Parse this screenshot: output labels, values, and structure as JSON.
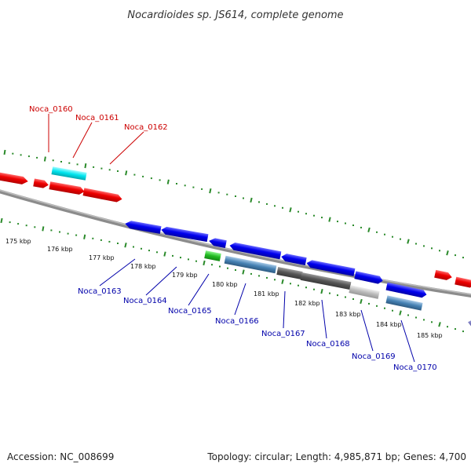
{
  "title": "Nocardioides sp. JS614, complete genome",
  "footer": {
    "accession": "Accession: NC_008699",
    "summary": "Topology: circular; Length: 4,985,871 bp; Genes: 4,700"
  },
  "scale_labels": [
    "175 kbp",
    "176 kbp",
    "177 kbp",
    "178 kbp",
    "179 kbp",
    "180 kbp",
    "181 kbp",
    "182 kbp",
    "183 kbp",
    "184 kbp",
    "185 kbp"
  ],
  "forward_genes": [
    {
      "id": "Noca_0160",
      "color": "#ff0000"
    },
    {
      "id": "Noca_0161",
      "color": "#00e5ee"
    },
    {
      "id": "Noca_0162",
      "color": "#ff0000"
    }
  ],
  "reverse_genes": [
    {
      "id": "Noca_0163",
      "color": "#0000ee"
    },
    {
      "id": "Noca_0164",
      "color": "#0000ee"
    },
    {
      "id": "Noca_0165",
      "color": "#22bb22"
    },
    {
      "id": "Noca_0166",
      "color": "#4682b4"
    },
    {
      "id": "Noca_0167",
      "color": "#555555"
    },
    {
      "id": "Noca_0168",
      "color": "#555555"
    },
    {
      "id": "Noca_0169",
      "color": "#bbbbbb"
    },
    {
      "id": "Noca_0170",
      "color": "#4682b4"
    }
  ],
  "colors": {
    "forward_cds": "#ff0000",
    "reverse_cds": "#0000ee",
    "tick_marks": "#2a8a2a",
    "backbone": "#8c8c8c"
  }
}
